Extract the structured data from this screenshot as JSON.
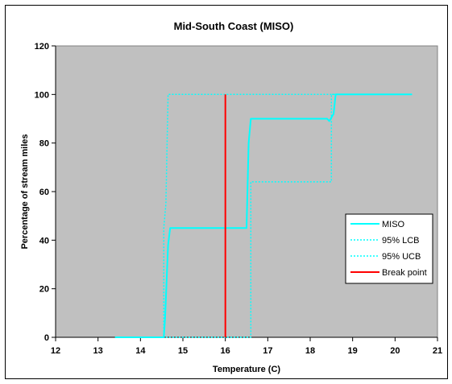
{
  "chart_data": {
    "type": "line",
    "title": "Mid-South Coast (MISO)",
    "xlabel": "Temperature (C)",
    "ylabel": "Percentage of stream miles",
    "xlim": [
      12,
      21
    ],
    "ylim": [
      0,
      120
    ],
    "xticks": [
      "12",
      "13",
      "14",
      "15",
      "16",
      "17",
      "18",
      "19",
      "20",
      "21"
    ],
    "yticks": [
      "0",
      "20",
      "40",
      "60",
      "80",
      "100",
      "120"
    ],
    "plot_background": "#c0c0c0",
    "grid": false,
    "legend_position": "right",
    "series": [
      {
        "name": "MISO",
        "color": "#00ffff",
        "style": "solid",
        "points": [
          [
            13.4,
            0
          ],
          [
            14.55,
            0
          ],
          [
            14.58,
            8
          ],
          [
            14.62,
            25
          ],
          [
            14.65,
            38
          ],
          [
            14.7,
            45
          ],
          [
            16.5,
            45
          ],
          [
            16.55,
            80
          ],
          [
            16.6,
            90
          ],
          [
            18.4,
            90
          ],
          [
            18.45,
            89
          ],
          [
            18.55,
            92
          ],
          [
            18.6,
            100
          ],
          [
            20.4,
            100
          ]
        ]
      },
      {
        "name": "95% LCB",
        "color": "#00ffff",
        "style": "dotted",
        "points": [
          [
            14.6,
            0
          ],
          [
            16.6,
            0
          ],
          [
            16.6,
            64
          ],
          [
            18.5,
            64
          ],
          [
            18.5,
            100
          ],
          [
            20.4,
            100
          ]
        ]
      },
      {
        "name": "95% UCB",
        "color": "#00ffff",
        "style": "dotted",
        "points": [
          [
            14.45,
            0
          ],
          [
            14.55,
            0
          ],
          [
            14.55,
            45
          ],
          [
            14.6,
            55
          ],
          [
            14.65,
            100
          ],
          [
            20.4,
            100
          ]
        ]
      },
      {
        "name": "Break point",
        "color": "#ff0000",
        "style": "solid",
        "points": [
          [
            16,
            0
          ],
          [
            16,
            100
          ]
        ]
      }
    ]
  }
}
